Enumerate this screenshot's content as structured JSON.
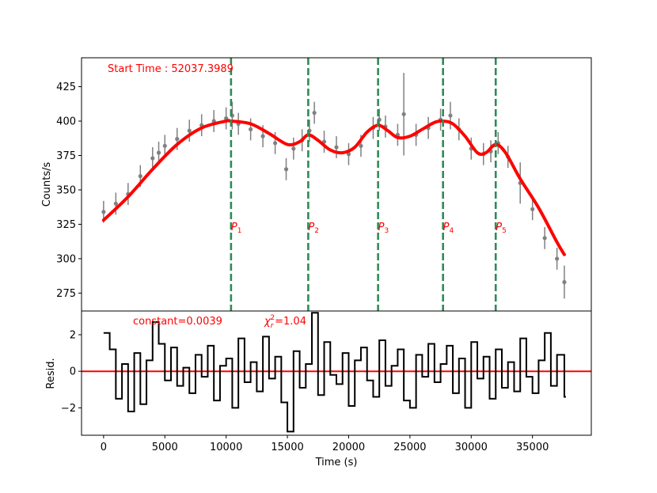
{
  "chart_data": {
    "type": "scatter",
    "colors": {
      "data": "#808080",
      "model": "#ff0000",
      "marker": "#2e8b57",
      "residual": "#000000",
      "zero_line": "#ff0000",
      "annotation": "#ff0000"
    },
    "x_axis": {
      "label": "Time (s)",
      "lim": [
        -1800,
        39800
      ],
      "ticks": [
        0,
        5000,
        10000,
        15000,
        20000,
        25000,
        30000,
        35000
      ]
    },
    "top_panel": {
      "ylabel": "Counts/s",
      "ylim": [
        262,
        446
      ],
      "yticks": [
        275,
        300,
        325,
        350,
        375,
        400,
        425
      ],
      "annotation": "Start Time : 52037.3989",
      "peak_markers": [
        {
          "label": "P",
          "sub": "1",
          "x": 10400
        },
        {
          "label": "P",
          "sub": "2",
          "x": 16700
        },
        {
          "label": "P",
          "sub": "3",
          "x": 22400
        },
        {
          "label": "P",
          "sub": "4",
          "x": 27700
        },
        {
          "label": "P",
          "sub": "5",
          "x": 32000
        }
      ],
      "model_curve": {
        "x": [
          0,
          2000,
          4000,
          6000,
          8000,
          10000,
          10400,
          12000,
          13500,
          15000,
          16000,
          16700,
          17500,
          18500,
          19500,
          20500,
          21500,
          22400,
          23200,
          24000,
          25000,
          26000,
          27000,
          27700,
          28500,
          29500,
          30500,
          31200,
          32000,
          32800,
          34000,
          35500,
          37000,
          37600
        ],
        "y": [
          328,
          345,
          365,
          383,
          395,
          400,
          400,
          398,
          391,
          383,
          385,
          390,
          386,
          379,
          377,
          381,
          392,
          397,
          393,
          388,
          389,
          394,
          399,
          400,
          398,
          389,
          377,
          377,
          383,
          377,
          358,
          337,
          312,
          303
        ]
      },
      "data_samples": {
        "x": [
          0,
          1000,
          2000,
          3000,
          4000,
          4500,
          5000,
          6000,
          7000,
          8000,
          9000,
          10000,
          10500,
          11000,
          12000,
          13000,
          14000,
          14900,
          15500,
          16200,
          16800,
          17200,
          18000,
          19000,
          20000,
          21000,
          22000,
          22500,
          23000,
          24000,
          24500,
          25500,
          26500,
          27500,
          28300,
          29000,
          30000,
          31000,
          31600,
          32200,
          33000,
          34000,
          35000,
          36000,
          37000,
          37600
        ],
        "y": [
          334,
          340,
          347,
          360,
          373,
          377,
          382,
          387,
          393,
          397,
          400,
          402,
          404,
          398,
          394,
          389,
          384,
          365,
          380,
          386,
          393,
          406,
          385,
          381,
          376,
          382,
          395,
          401,
          396,
          390,
          405,
          390,
          395,
          401,
          404,
          394,
          380,
          376,
          378,
          384,
          374,
          355,
          336,
          315,
          300,
          283
        ],
        "err": [
          8,
          8,
          8,
          8,
          8,
          8,
          8,
          8,
          8,
          8,
          8,
          8,
          10,
          8,
          8,
          8,
          8,
          8,
          8,
          8,
          8,
          8,
          8,
          8,
          8,
          8,
          8,
          8,
          8,
          8,
          30,
          8,
          8,
          8,
          10,
          8,
          8,
          8,
          8,
          8,
          8,
          15,
          8,
          8,
          8,
          12
        ]
      }
    },
    "bottom_panel": {
      "ylabel": "Resid.",
      "ylim": [
        -3.5,
        3.3
      ],
      "yticks": [
        -2,
        0,
        2
      ],
      "annotation_constant": "constant=0.0039",
      "annotation_chi": "=1.04",
      "residuals": {
        "x": [
          0,
          500,
          1000,
          1500,
          2000,
          2500,
          3000,
          3500,
          4000,
          4500,
          5000,
          5500,
          6000,
          6500,
          7000,
          7500,
          8000,
          8500,
          9000,
          9500,
          10000,
          10500,
          11000,
          11500,
          12000,
          12500,
          13000,
          13500,
          14000,
          14500,
          15000,
          15500,
          16000,
          16500,
          17000,
          17500,
          18000,
          18500,
          19000,
          19500,
          20000,
          20500,
          21000,
          21500,
          22000,
          22500,
          23000,
          23500,
          24000,
          24500,
          25000,
          25500,
          26000,
          26500,
          27000,
          27500,
          28000,
          28500,
          29000,
          29500,
          30000,
          30500,
          31000,
          31500,
          32000,
          32500,
          33000,
          33500,
          34000,
          34500,
          35000,
          35500,
          36000,
          36500,
          37000,
          37600
        ],
        "y": [
          2.1,
          1.2,
          -1.5,
          0.4,
          -2.2,
          1.0,
          -1.8,
          0.6,
          2.7,
          1.5,
          -0.5,
          1.3,
          -0.8,
          0.2,
          -1.2,
          0.9,
          -0.3,
          1.4,
          -1.6,
          0.3,
          0.7,
          -2.0,
          1.8,
          -0.6,
          0.5,
          -1.1,
          1.9,
          -0.4,
          0.8,
          -1.7,
          -3.3,
          1.1,
          -0.9,
          0.4,
          3.2,
          -1.3,
          1.6,
          -0.2,
          -0.7,
          1.0,
          -1.9,
          0.6,
          1.3,
          -0.5,
          -1.4,
          1.7,
          -0.8,
          0.3,
          1.2,
          -1.6,
          -2.0,
          0.9,
          -0.3,
          1.5,
          -0.6,
          0.4,
          1.4,
          -1.2,
          0.7,
          -2.0,
          1.6,
          -0.4,
          0.8,
          -1.5,
          1.2,
          -0.9,
          0.5,
          -1.1,
          1.8,
          -0.3,
          -1.2,
          0.6,
          2.1,
          -0.8,
          0.9,
          -1.4
        ]
      }
    }
  }
}
